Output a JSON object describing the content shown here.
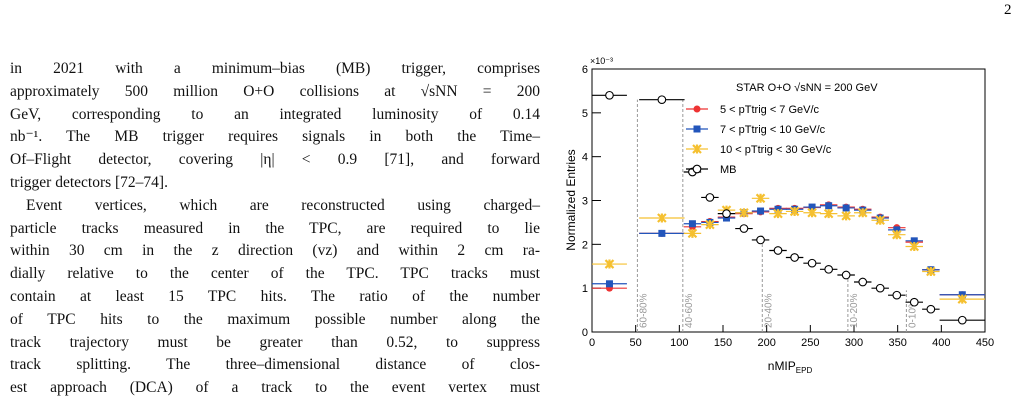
{
  "page_number": "2",
  "paragraphs": [
    {
      "lines": [
        "in 2021 with a minimum–bias (MB) trigger, comprises",
        "approximately 500 million O+O collisions at √sNN = 200",
        "GeV, corresponding to an integrated luminosity of 0.14",
        "nb⁻¹. The MB trigger requires signals in both the Time–",
        "Of–Flight detector, covering |η| < 0.9 [71], and forward",
        "trigger detectors [72–74]."
      ]
    },
    {
      "lines": [
        "Event vertices, which are reconstructed using charged–",
        "particle tracks measured in the TPC, are required to lie",
        "within 30 cm in the z direction (vz) and within 2 cm ra-",
        "dially relative to the center of the TPC. TPC tracks must",
        "contain at least 15 TPC hits. The ratio of the number",
        "of TPC hits to the maximum possible number along the",
        "track trajectory must be greater than 0.52, to suppress",
        "track splitting. The three–dimensional distance of clos-",
        "est approach (DCA) of a track to the event vertex must"
      ]
    }
  ],
  "chart_data": {
    "type": "errorbar",
    "y_label": "Normalized Entries",
    "y_multiplier": "×10⁻³",
    "x_label": "nMIP",
    "x_label_sub": "EPD",
    "legend_title": "STAR  O+O √sNN = 200 GeV",
    "x": [
      20,
      80,
      115,
      135,
      154,
      174,
      193,
      213,
      232,
      252,
      271,
      291,
      310,
      330,
      349,
      369,
      388,
      424
    ],
    "xerr": [
      20,
      26,
      10,
      10,
      10,
      10,
      10,
      10,
      10,
      10,
      10,
      10,
      10,
      10,
      10,
      10,
      10,
      26
    ],
    "series": [
      {
        "name": "5 < pTtrig < 7 GeV/c",
        "color": "#ee3333",
        "marker": "circle",
        "values": [
          1.0,
          2.25,
          2.4,
          2.52,
          2.62,
          2.7,
          2.74,
          2.82,
          2.82,
          2.84,
          2.9,
          2.85,
          2.8,
          2.62,
          2.38,
          2.05,
          1.42,
          0.85
        ]
      },
      {
        "name": "7 < pTtrig < 10 GeV/c",
        "color": "#2255bb",
        "marker": "square",
        "values": [
          1.1,
          2.25,
          2.47,
          2.5,
          2.6,
          2.72,
          2.76,
          2.8,
          2.8,
          2.85,
          2.88,
          2.83,
          2.78,
          2.6,
          2.33,
          2.08,
          1.42,
          0.85
        ]
      },
      {
        "name": "10 < pTtrig < 30 GeV/c",
        "color": "#f5c030",
        "marker": "cross",
        "values": [
          1.55,
          2.6,
          2.25,
          2.45,
          2.78,
          2.72,
          3.05,
          2.7,
          2.75,
          2.72,
          2.7,
          2.65,
          2.72,
          2.55,
          2.22,
          1.95,
          1.38,
          0.75
        ]
      },
      {
        "name": "MB",
        "color": "#000000",
        "marker": "open-circle",
        "values": [
          5.4,
          5.3,
          3.65,
          3.07,
          2.7,
          2.36,
          2.1,
          1.86,
          1.7,
          1.57,
          1.43,
          1.3,
          1.14,
          1.0,
          0.84,
          0.68,
          0.52,
          0.27
        ]
      }
    ],
    "annotations": [
      {
        "x": 52,
        "y": 5.3,
        "label": "60-80%"
      },
      {
        "x": 104,
        "y": 5.3,
        "label": "40-60%"
      },
      {
        "x": 195,
        "y": 2.2,
        "label": "20-40%"
      },
      {
        "x": 293,
        "y": 1.3,
        "label": "10-20%"
      },
      {
        "x": 360,
        "y": 0.95,
        "label": "0-10%"
      }
    ],
    "xlim": [
      0,
      450
    ],
    "xticks": [
      0,
      50,
      100,
      150,
      200,
      250,
      300,
      350,
      400,
      450
    ],
    "ylim": [
      0,
      6
    ],
    "yticks": [
      0,
      1,
      2,
      3,
      4,
      5,
      6
    ]
  }
}
